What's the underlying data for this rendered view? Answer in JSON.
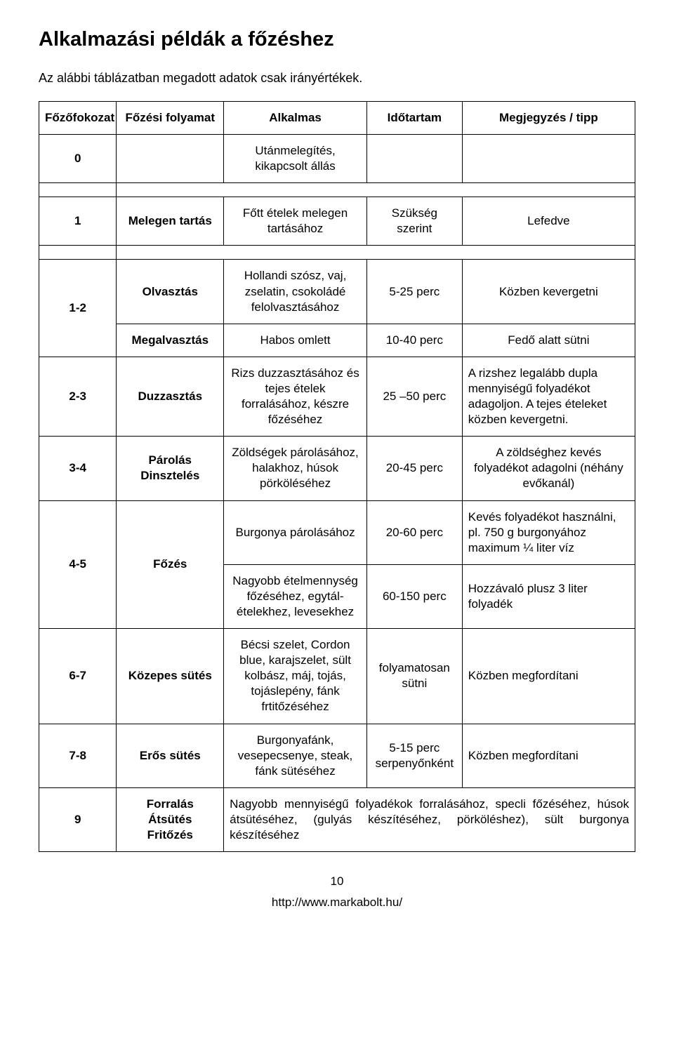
{
  "title": "Alkalmazási példák a főzéshez",
  "intro": "Az alábbi táblázatban megadott adatok csak irányértékek.",
  "headers": {
    "level": "Főzőfokozat",
    "process": "Főzési folyamat",
    "suitable": "Alkalmas",
    "duration": "Időtartam",
    "note": "Megjegyzés / tipp"
  },
  "rows": {
    "r0_level": "0",
    "r0_suitable": "Utánmelegítés, kikapcsolt állás",
    "r1_level": "1",
    "r1_process": "Melegen tartás",
    "r1_suitable": "Főtt ételek melegen tartásához",
    "r1_duration": "Szükség szerint",
    "r1_note": "Lefedve",
    "r2_level": "1-2",
    "r2a_process": "Olvasztás",
    "r2a_suitable": "Hollandi szósz, vaj, zselatin, csokoládé felolvasztásához",
    "r2a_duration": "5-25 perc",
    "r2a_note": "Közben kevergetni",
    "r2b_process": "Megalvasztás",
    "r2b_suitable": "Habos omlett",
    "r2b_duration": "10-40 perc",
    "r2b_note": "Fedő alatt sütni",
    "r3_level": "2-3",
    "r3_process": "Duzzasztás",
    "r3_suitable": "Rizs duzzasztásához és tejes ételek forralásához, készre főzéséhez",
    "r3_duration": "25 –50 perc",
    "r3_note": "A rizshez legalább dupla mennyiségű folyadékot adagoljon. A tejes ételeket közben kevergetni.",
    "r4_level": "3-4",
    "r4_process1": "Párolás",
    "r4_process2": "Dinsztelés",
    "r4_suitable": "Zöldségek párolásához, halakhoz, húsok pörköléséhez",
    "r4_duration": "20-45 perc",
    "r4_note": "A zöldséghez kevés folyadékot adagolni (néhány evőkanál)",
    "r5_level": "4-5",
    "r5_process": "Főzés",
    "r5a_suitable": "Burgonya párolásához",
    "r5a_duration": "20-60 perc",
    "r5a_note": "Kevés folyadékot használni, pl. 750 g burgonyához maximum ¼ liter víz",
    "r5b_suitable": "Nagyobb ételmennység főzéséhez, egytál-ételekhez, levesekhez",
    "r5b_duration": "60-150 perc",
    "r5b_note": "Hozzávaló plusz 3 liter folyadék",
    "r6_level": "6-7",
    "r6_process": "Közepes sütés",
    "r6_suitable": "Bécsi szelet, Cordon blue, karajszelet, sült kolbász, máj, tojás, tojáslepény, fánk frtitőzéséhez",
    "r6_duration": "folyamatosan sütni",
    "r6_note": "Közben megfordítani",
    "r7_level": "7-8",
    "r7_process": "Erős sütés",
    "r7_suitable": "Burgonyafánk, vesepecsenye, steak, fánk sütéséhez",
    "r7_duration": "5-15 perc serpenyőnként",
    "r7_note": "Közben megfordítani",
    "r8_level": "9",
    "r8_process1": "Forralás",
    "r8_process2": "Átsütés",
    "r8_process3": "Fritőzés",
    "r8_note": "Nagyobb mennyiségű folyadékok forralásához, specli főzéséhez, húsok átsütéséhez, (gulyás készítéséhez, pörköléshez), sült burgonya készítéséhez"
  },
  "footer": {
    "pagenum": "10",
    "url": "http://www.markabolt.hu/"
  }
}
